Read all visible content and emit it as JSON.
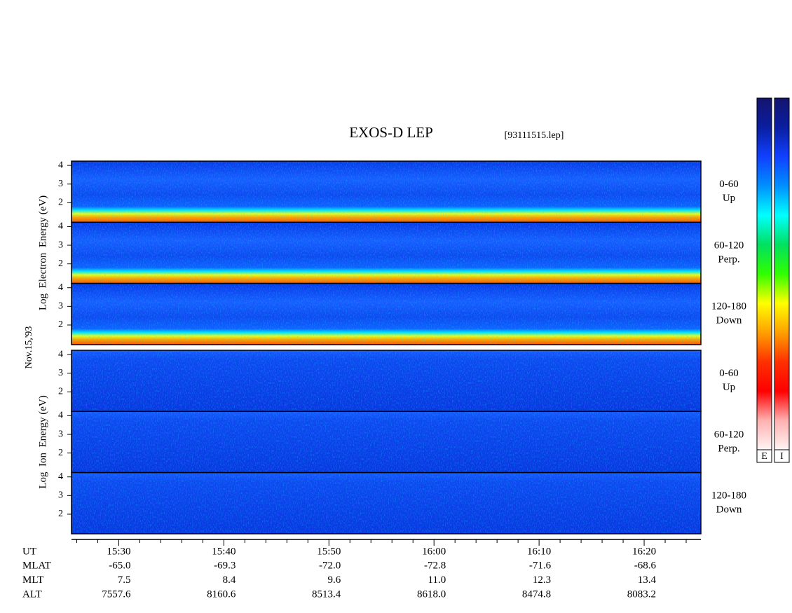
{
  "chart_data": {
    "type": "spectrogram",
    "title": "EXOS-D LEP",
    "subtitle": "[93111515.lep]",
    "date_label": "Nov.15,'93",
    "xlim": [
      925.5,
      985.4
    ],
    "xticks": [
      {
        "value": 930,
        "label": "15:30"
      },
      {
        "value": 940,
        "label": "15:40"
      },
      {
        "value": 950,
        "label": "15:50"
      },
      {
        "value": 960,
        "label": "16:00"
      },
      {
        "value": 970,
        "label": "16:10"
      },
      {
        "value": 980,
        "label": "16:20"
      }
    ],
    "xminorticks": [
      926,
      928,
      932,
      934,
      936,
      938,
      942,
      944,
      946,
      948,
      952,
      954,
      956,
      958,
      962,
      964,
      966,
      968,
      972,
      974,
      976,
      978,
      982,
      984
    ],
    "xlabel": "UT",
    "ylim": [
      0.95,
      4.23
    ],
    "yticks": [
      2,
      3,
      4
    ],
    "groups": [
      {
        "ylabel": "Log  Electron  Energy (eV)",
        "panels": [
          {
            "angle": "0-60",
            "direction": "Up"
          },
          {
            "angle": "60-120",
            "direction": "Perp."
          },
          {
            "angle": "120-180",
            "direction": "Down"
          }
        ]
      },
      {
        "ylabel": "Log  Ion  Energy (eV)",
        "panels": [
          {
            "angle": "0-60",
            "direction": "Up"
          },
          {
            "angle": "60-120",
            "direction": "Perp."
          },
          {
            "angle": "120-180",
            "direction": "Down"
          }
        ]
      }
    ],
    "rows": [
      {
        "name": "MLAT",
        "values": [
          -65,
          -69.3,
          -72,
          -72.8,
          -71.6,
          -68.6
        ],
        "value_labels": [
          "-65.0",
          "-69.3",
          "-72.0",
          "-72.8",
          "-71.6",
          "-68.6"
        ]
      },
      {
        "name": "MLT",
        "values": [
          7.5,
          8.4,
          9.6,
          11,
          12.3,
          13.4
        ],
        "value_labels": [
          "7.5",
          "8.4",
          "9.6",
          "11.0",
          "12.3",
          "13.4"
        ]
      },
      {
        "name": "ALT",
        "values": [
          7557.6,
          8160.6,
          8513.4,
          8618,
          8474.8,
          8083.2
        ],
        "value_labels": [
          "7557.6",
          "8160.6",
          "8513.4",
          "8618.0",
          "8474.8",
          "8083.2"
        ]
      }
    ],
    "colorbar": {
      "colors": [
        "#14146e",
        "#0a1ea0",
        "#1040ff",
        "#0090ff",
        "#00ffff",
        "#00e060",
        "#30ff00",
        "#ffff00",
        "#ffa000",
        "#ff3000",
        "#ff0000",
        "#ffb0b0",
        "#fff4f4"
      ],
      "labels": [
        "E",
        "I"
      ]
    }
  }
}
